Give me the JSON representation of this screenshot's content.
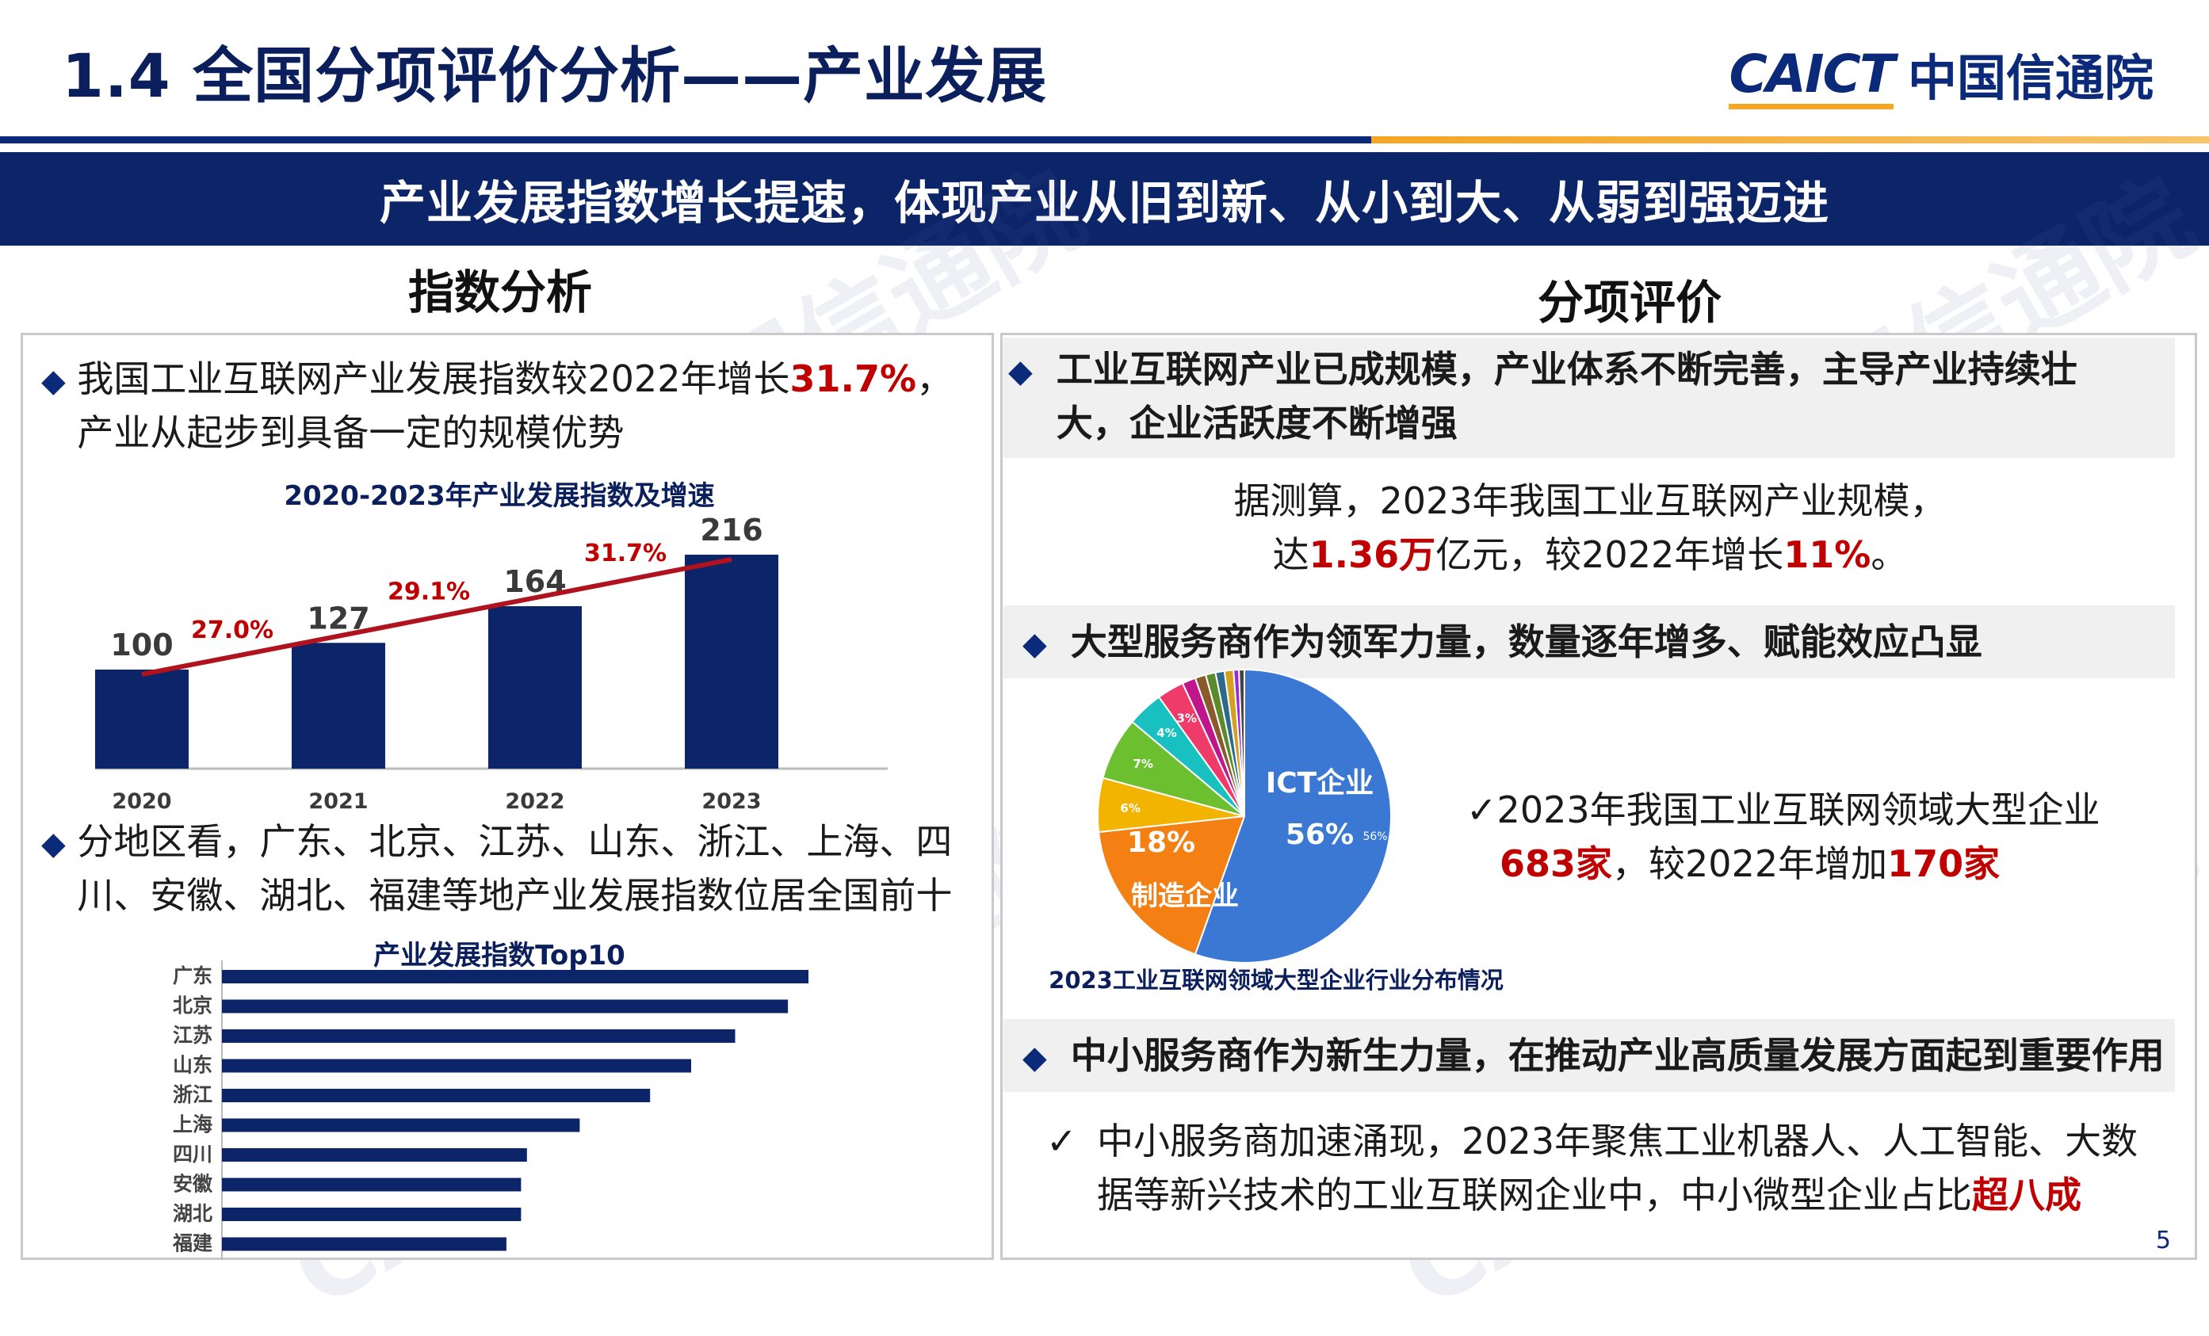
{
  "header": {
    "title": "1.4  全国分项评价分析——产业发展",
    "logo_en": "CAICT",
    "logo_cn": "中国信通院"
  },
  "banner": {
    "text": "产业发展指数增长提速，体现产业从旧到新、从小到大、从弱到强迈进"
  },
  "left": {
    "heading": "指数分析",
    "bullet1": {
      "pre": "我国工业互联网产业发展指数较2022年增长",
      "highlight": "31.7%",
      "post": "，产业从起步到具备一定的规模优势"
    },
    "bullet2": "分地区看，广东、北京、江苏、山东、浙江、上海、四川、安徽、湖北、福建等地产业发展指数位居全国前十"
  },
  "right": {
    "heading": "分项评价",
    "point1": "工业互联网产业已成规模，产业体系不断完善，主导产业持续壮大，企业活跃度不断增强",
    "scale_line1": "据测算，2023年我国工业互联网产业规模，",
    "scale_line2_pre": "达",
    "scale_value": "1.36万",
    "scale_line2_mid": "亿元，较2022年增长",
    "scale_growth": "11%",
    "scale_line2_post": "。",
    "point2": "大型服务商作为领军力量，数量逐年增多、赋能效应凸显",
    "large_check": "✓",
    "large_line1": "2023年我国工业互联网领域大型企业",
    "large_count": "683家",
    "large_mid": "，较2022年增加",
    "large_increase": "170家",
    "point3": "中小服务商作为新生力量，在推动产业高质量发展方面起到重要作用",
    "sme_check": "✓",
    "sme_pre": "中小服务商加速涌现，2023年聚焦工业机器人、人工智能、大数据等新兴技术的工业互联网企业中，中小微型企业占比",
    "sme_highlight": "超八成"
  },
  "page_number": "5",
  "watermark": "CAICT 中国信通院",
  "colors": {
    "navy": "#0c2468",
    "red": "#c00000",
    "orange": "#f5a623",
    "bar": "#0c2468"
  },
  "chart_data": [
    {
      "type": "bar",
      "title": "2020-2023年产业发展指数及增速",
      "categories": [
        "2020",
        "2021",
        "2022",
        "2023"
      ],
      "values": [
        100,
        127,
        164,
        216
      ],
      "growth_labels": [
        "27.0%",
        "29.1%",
        "31.7%"
      ],
      "ylim": [
        0,
        240
      ],
      "trend_line": true
    },
    {
      "type": "bar",
      "orientation": "horizontal",
      "title": "产业发展指数Top10",
      "categories": [
        "广东",
        "北京",
        "江苏",
        "山东",
        "浙江",
        "上海",
        "四川",
        "安徽",
        "湖北",
        "福建"
      ],
      "values": [
        100,
        96.5,
        87.5,
        80,
        73,
        61,
        52,
        51,
        51,
        48.5
      ],
      "xlim": [
        0,
        100
      ]
    },
    {
      "type": "pie",
      "title": "2023工业互联网领域大型企业行业分布情况",
      "slices": [
        {
          "label": "ICT企业",
          "value": 56,
          "text": "56%",
          "color": "#3a78d4"
        },
        {
          "label": "制造企业",
          "value": 18,
          "text": "18%",
          "color": "#f47f13"
        },
        {
          "label": "",
          "value": 6,
          "text": "6%",
          "color": "#f2b400"
        },
        {
          "label": "",
          "value": 7,
          "text": "7%",
          "color": "#6cc02f"
        },
        {
          "label": "",
          "value": 4,
          "text": "4%",
          "color": "#18c0c0"
        },
        {
          "label": "",
          "value": 3,
          "text": "3%",
          "color": "#ee3b6a"
        },
        {
          "label": "",
          "value": 1.5,
          "text": "",
          "color": "#c0168c"
        },
        {
          "label": "",
          "value": 1.2,
          "text": "",
          "color": "#8a5a2b"
        },
        {
          "label": "",
          "value": 1.1,
          "text": "",
          "color": "#5a8a2b"
        },
        {
          "label": "",
          "value": 1.0,
          "text": "",
          "color": "#2b6a8a"
        },
        {
          "label": "",
          "value": 1.0,
          "text": "",
          "color": "#d4a020"
        },
        {
          "label": "",
          "value": 0.6,
          "text": "",
          "color": "#9a2bd4"
        },
        {
          "label": "",
          "value": 0.6,
          "text": "",
          "color": "#444444"
        }
      ],
      "inner_small_label": "56%"
    }
  ]
}
